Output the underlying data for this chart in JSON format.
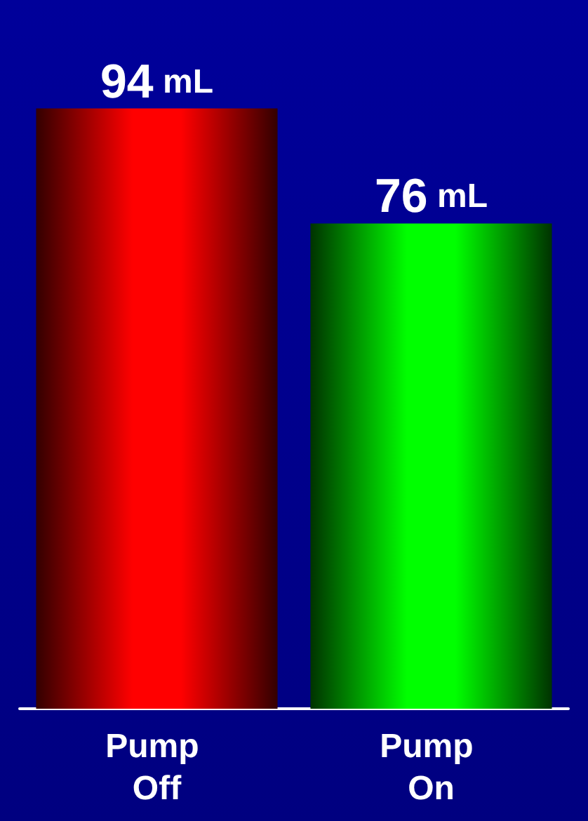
{
  "chart_data": {
    "type": "bar",
    "categories": [
      "Pump Off",
      "Pump On"
    ],
    "values": [
      94,
      76
    ],
    "colors": [
      "#ff0000",
      "#00ff00"
    ],
    "value_labels": [
      "94 mL",
      "76 mL"
    ]
  }
}
